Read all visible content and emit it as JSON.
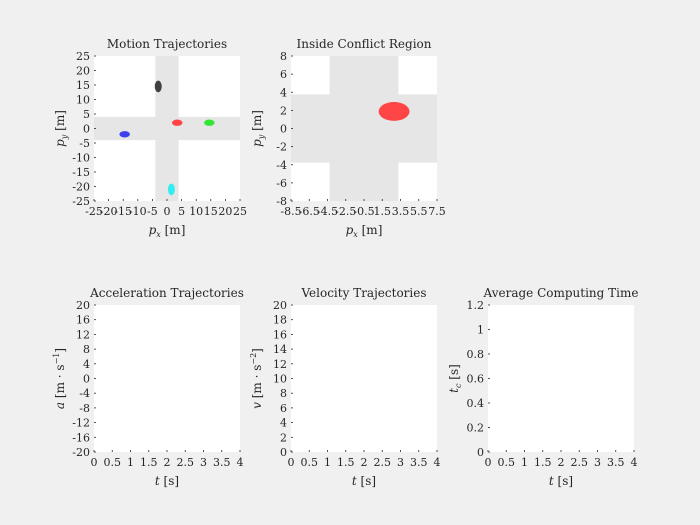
{
  "chart_data": [
    {
      "type": "scatter",
      "title": "Motion Trajectories",
      "xlabel_main": "p",
      "xlabel_sub": "x",
      "xlabel_unit": "[m]",
      "ylabel_main": "p",
      "ylabel_sub": "y",
      "ylabel_unit": "[m]",
      "xlim": [
        -25,
        25
      ],
      "ylim": [
        -25,
        25
      ],
      "xticks": [
        "-25",
        "-20",
        "-15",
        "-10",
        "-5",
        "0",
        "5",
        "10",
        "15",
        "20",
        "25"
      ],
      "yticks": [
        "25",
        "20",
        "15",
        "10",
        "5",
        "0",
        "-5",
        "-10",
        "-15",
        "-20",
        "-25"
      ],
      "background": {
        "road_halfwidth": 4,
        "road_color": "#e6e6e6",
        "field_color": "#ffffff"
      },
      "vehicles": [
        {
          "name": "black",
          "x": -3.0,
          "y": 14.5,
          "rx": 1.2,
          "ry": 2.0,
          "color": "#404040"
        },
        {
          "name": "red",
          "x": 3.5,
          "y": 2.0,
          "rx": 1.8,
          "ry": 1.1,
          "color": "#ff4545"
        },
        {
          "name": "green",
          "x": 14.5,
          "y": 2.0,
          "rx": 1.8,
          "ry": 1.1,
          "color": "#33e633"
        },
        {
          "name": "blue",
          "x": -14.5,
          "y": -2.0,
          "rx": 1.8,
          "ry": 1.1,
          "color": "#4040ee"
        },
        {
          "name": "cyan",
          "x": 1.5,
          "y": -21.0,
          "rx": 1.2,
          "ry": 2.0,
          "color": "#33eeee"
        }
      ]
    },
    {
      "type": "scatter",
      "title": "Inside Conflict Region",
      "xlabel_main": "p",
      "xlabel_sub": "x",
      "xlabel_unit": "[m]",
      "ylabel_main": "p",
      "ylabel_sub": "y",
      "ylabel_unit": "[m]",
      "xlim": [
        -8.5,
        8.5
      ],
      "ylim": [
        -8.5,
        8.5
      ],
      "xticks": [
        "-8.5",
        "-6.5",
        "-4.5",
        "-2.5",
        "-0.5",
        "1.5",
        "3.5",
        "5.5",
        "7.5"
      ],
      "yticks": [
        "8",
        "6",
        "4",
        "2",
        "0",
        "-2",
        "-4",
        "-6",
        "-8"
      ],
      "background": {
        "road_halfwidth": 4,
        "road_color": "#e6e6e6",
        "field_color": "#ffffff"
      },
      "vehicles": [
        {
          "name": "red",
          "x": 3.5,
          "y": 2.0,
          "rx": 1.8,
          "ry": 1.1,
          "color": "#ff4545"
        }
      ]
    },
    {
      "type": "line",
      "title": "Acceleration Trajectories",
      "xlabel_main": "t",
      "xlabel_unit": "[s]",
      "ylabel_main": "a",
      "ylabel_unit": "[m · s",
      "ylabel_exp": "−1",
      "ylabel_close": "]",
      "xlim": [
        0,
        4
      ],
      "ylim": [
        -20,
        20
      ],
      "xticks": [
        "0",
        "0.5",
        "1",
        "1.5",
        "2",
        "2.5",
        "3",
        "3.5",
        "4"
      ],
      "yticks": [
        "20",
        "16",
        "12",
        "8",
        "4",
        "0",
        "-4",
        "-8",
        "-12",
        "-16",
        "-20"
      ],
      "series": []
    },
    {
      "type": "line",
      "title": "Velocity Trajectories",
      "xlabel_main": "t",
      "xlabel_unit": "[s]",
      "ylabel_main": "v",
      "ylabel_unit": "[m · s",
      "ylabel_exp": "−2",
      "ylabel_close": "]",
      "xlim": [
        0,
        4
      ],
      "ylim": [
        0,
        20
      ],
      "xticks": [
        "0",
        "0.5",
        "1",
        "1.5",
        "2",
        "2.5",
        "3",
        "3.5",
        "4"
      ],
      "yticks": [
        "20",
        "18",
        "16",
        "14",
        "12",
        "10",
        "8",
        "6",
        "4",
        "2",
        "0"
      ],
      "series": []
    },
    {
      "type": "line",
      "title": "Average Computing Time",
      "xlabel_main": "t",
      "xlabel_unit": "[s]",
      "ylabel_main": "t",
      "ylabel_sub": "c",
      "ylabel_unit": "[s]",
      "xlim": [
        0,
        4
      ],
      "ylim": [
        0,
        1.2
      ],
      "xticks": [
        "0",
        "0.5",
        "1",
        "1.5",
        "2",
        "2.5",
        "3",
        "3.5",
        "4"
      ],
      "yticks": [
        "1.2",
        "1",
        "0.8",
        "0.6",
        "0.4",
        "0.2",
        "0"
      ],
      "series": []
    }
  ]
}
